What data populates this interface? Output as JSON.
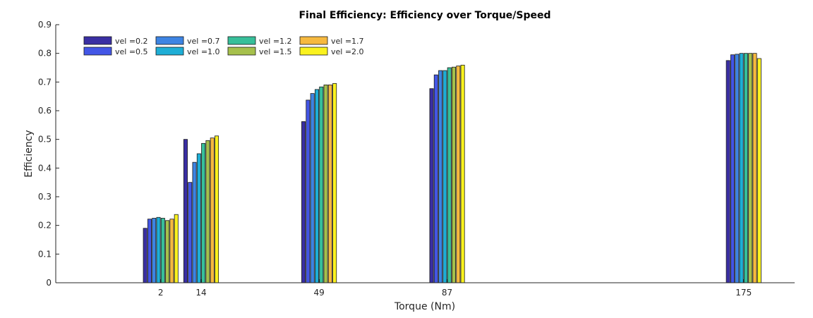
{
  "chart_data": {
    "type": "bar",
    "title": "Final Efficiency: Efficiency over Torque/Speed",
    "xlabel": "Torque (Nm)",
    "ylabel": "Efficiency",
    "ylim": [
      0,
      0.9
    ],
    "yticks": [
      "0",
      "0.1",
      "0.2",
      "0.3",
      "0.4",
      "0.5",
      "0.6",
      "0.7",
      "0.8",
      "0.9"
    ],
    "xlim": [
      -29.14,
      190.13
    ],
    "categories": [
      "2",
      "14",
      "49",
      "87",
      "175"
    ],
    "x": [
      2,
      14,
      49,
      87,
      175
    ],
    "grid": false,
    "legend_position": "top-left",
    "series": [
      {
        "name": "vel =0.2",
        "color": "#3a2fa3",
        "values": [
          0.19,
          0.5,
          0.562,
          0.677,
          0.775
        ]
      },
      {
        "name": "vel =0.5",
        "color": "#4356e6",
        "values": [
          0.222,
          0.35,
          0.637,
          0.725,
          0.795
        ]
      },
      {
        "name": "vel =0.7",
        "color": "#3d84e3",
        "values": [
          0.225,
          0.42,
          0.66,
          0.74,
          0.797
        ]
      },
      {
        "name": "vel =1.0",
        "color": "#1eaed6",
        "values": [
          0.228,
          0.45,
          0.674,
          0.74,
          0.8
        ]
      },
      {
        "name": "vel =1.2",
        "color": "#37bf9a",
        "values": [
          0.225,
          0.486,
          0.683,
          0.75,
          0.8
        ]
      },
      {
        "name": "vel =1.5",
        "color": "#a6c04c",
        "values": [
          0.217,
          0.496,
          0.69,
          0.752,
          0.8
        ]
      },
      {
        "name": "vel =1.7",
        "color": "#f6b93f",
        "values": [
          0.222,
          0.505,
          0.69,
          0.756,
          0.8
        ]
      },
      {
        "name": "vel =2.0",
        "color": "#faf21e",
        "values": [
          0.238,
          0.512,
          0.695,
          0.759,
          0.782
        ]
      }
    ]
  }
}
